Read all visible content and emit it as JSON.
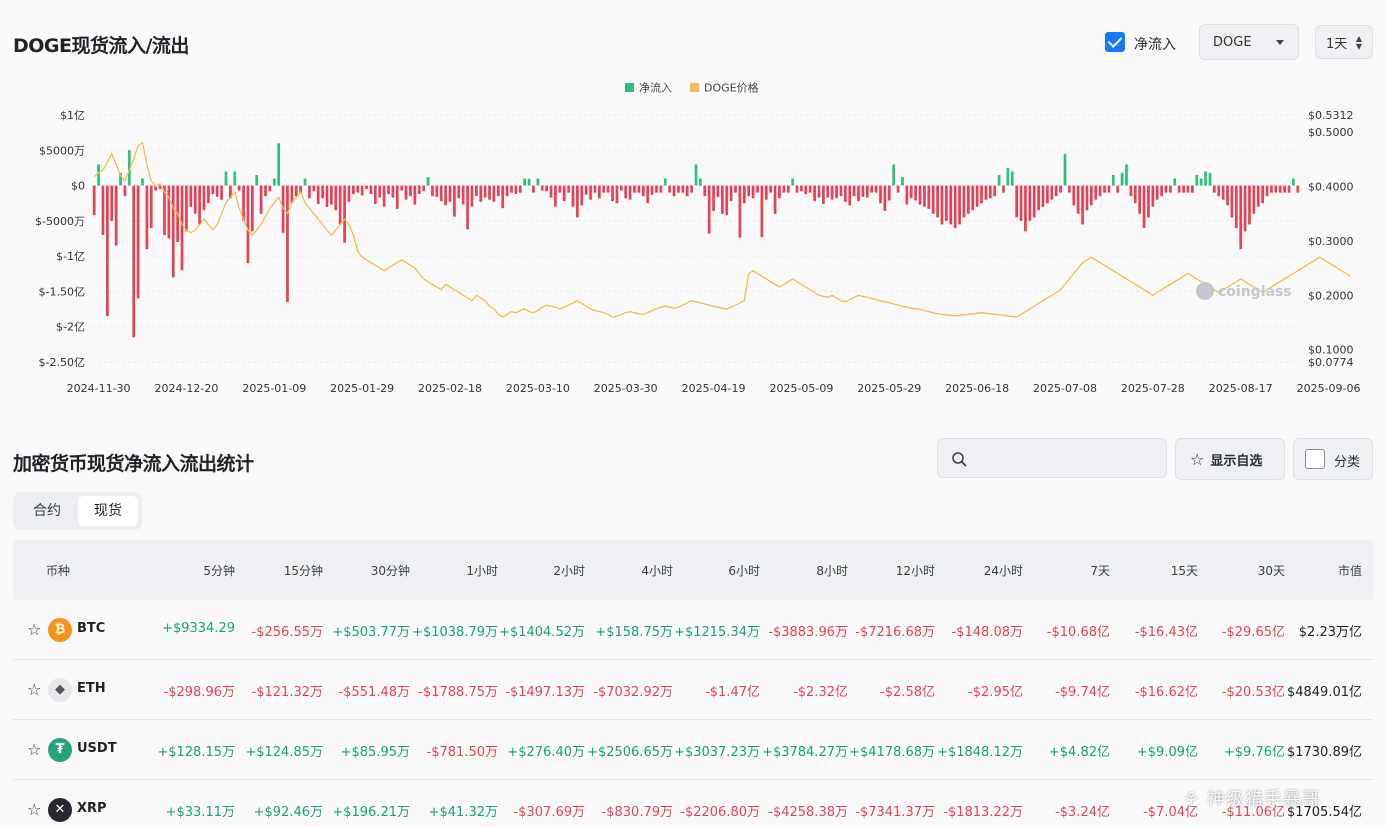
{
  "header": {
    "title": "DOGE现货流入/流出",
    "net_flow_label": "净流入",
    "coin_select": "DOGE",
    "interval_select": "1天"
  },
  "chart_data": {
    "type": "bar",
    "legend": [
      "净流入",
      "DOGE价格"
    ],
    "legend_position": "top-center",
    "colors": {
      "inflow": "#2fbf7f",
      "outflow": "#e84155",
      "price": "#f0c050"
    },
    "x_tick_labels": [
      "2024-11-30",
      "2024-12-20",
      "2025-01-09",
      "2025-01-29",
      "2025-02-18",
      "2025-03-10",
      "2025-03-30",
      "2025-04-19",
      "2025-05-09",
      "2025-05-29",
      "2025-06-18",
      "2025-07-08",
      "2025-07-28",
      "2025-08-17",
      "2025-09-06"
    ],
    "y_left_ticks": [
      "$1亿",
      "$5000万",
      "$0",
      "$-5000万",
      "$-1亿",
      "$-1.50亿",
      "$-2亿",
      "$-2.50亿"
    ],
    "y_right_ticks": [
      "$0.5312",
      "$0.5000",
      "$0.4000",
      "$0.3000",
      "$0.2000",
      "$0.1000",
      "$0.0774"
    ],
    "ylim_left": [
      -25000,
      10000
    ],
    "ylim_right": [
      0.0774,
      0.5312
    ],
    "x_start": "2024-11-29",
    "series": [
      {
        "name": "净流入",
        "axis": "left",
        "values": [
          -4200,
          3000,
          -7000,
          -18500,
          -5000,
          -8500,
          1800,
          -1500,
          5000,
          -21500,
          -16000,
          1000,
          -9000,
          -6000,
          -700,
          -500,
          -7000,
          -7500,
          -13000,
          -8000,
          -12000,
          -6500,
          -3000,
          -4000,
          -5500,
          -3500,
          -2500,
          -1200,
          -1600,
          -2000,
          2000,
          -1800,
          2000,
          -700,
          -5000,
          -11000,
          -6500,
          1500,
          -4000,
          -1500,
          -800,
          1000,
          6000,
          -6700,
          -16500,
          -2500,
          -1500,
          -1000,
          1000,
          -1800,
          -800,
          -2600,
          -1800,
          -3000,
          -2700,
          -3500,
          -5500,
          -8100,
          -2300,
          -1200,
          -1000,
          -1400,
          -500,
          -1200,
          -2600,
          -1700,
          -3000,
          -1200,
          -1700,
          -3300,
          -700,
          -2000,
          -1500,
          -2700,
          -1200,
          -800,
          1200,
          -1500,
          -1600,
          -2200,
          -2800,
          -2300,
          -4400,
          -1800,
          -2700,
          -6200,
          -3000,
          -1500,
          -2300,
          -1700,
          -2000,
          -2300,
          -1500,
          -3200,
          -1500,
          -1000,
          -1200,
          -1000,
          1000,
          1000,
          -1000,
          1000,
          -700,
          -800,
          -1700,
          -3000,
          -1000,
          -2200,
          -1000,
          -3000,
          -4500,
          -2800,
          -1300,
          -2000,
          -1000,
          -1800,
          -1000,
          -1000,
          -2200,
          -2500,
          -700,
          -1800,
          -2000,
          -1000,
          -1000,
          -1500,
          -2500,
          -1300,
          -1000,
          -1000,
          1000,
          -1000,
          -1500,
          -1000,
          -1000,
          -1500,
          -1000,
          3000,
          1000,
          -1500,
          -6800,
          -3600,
          -1600,
          -4000,
          -4200,
          -2200,
          -1000,
          -7400,
          -2500,
          -1500,
          -1800,
          -1000,
          -7300,
          -2000,
          -1000,
          -4000,
          -1800,
          -1000,
          -1000,
          1000,
          -1000,
          -800,
          -1200,
          -1000,
          -2200,
          -1700,
          -2600,
          -1700,
          -2000,
          -1800,
          -1500,
          -2300,
          -2800,
          -1500,
          -2200,
          -1600,
          -1700,
          -1000,
          -1000,
          -2500,
          -3600,
          -2100,
          3000,
          -1000,
          1200,
          -2700,
          -1800,
          -2100,
          -2700,
          -3000,
          -3300,
          -4000,
          -4500,
          -5500,
          -5000,
          -5500,
          -6000,
          -5500,
          -4500,
          -4000,
          -3500,
          -3000,
          -2500,
          -2000,
          -1800,
          -1500,
          1500,
          -1000,
          2500,
          2000,
          -4500,
          -5000,
          -6500,
          -5000,
          -4500,
          -3500,
          -3000,
          -2500,
          -2000,
          -1500,
          -1000,
          4500,
          -1000,
          -2800,
          -4000,
          -5500,
          -3500,
          -2800,
          -2000,
          -1500,
          -1000,
          -1000,
          1500,
          -1000,
          1800,
          3000,
          -1500,
          -2500,
          -4000,
          -6000,
          -4500,
          -3000,
          -2000,
          -1500,
          -1000,
          -1000,
          1000,
          -1000,
          -1000,
          -1000,
          -1000,
          1500,
          1000,
          2000,
          1800,
          -1000,
          -1500,
          -2000,
          -2800,
          -4500,
          -6000,
          -9000,
          -6500,
          -5500,
          -4000,
          -3000,
          -2500,
          -1500,
          -1000,
          -1000,
          -1000,
          -1000,
          -1000,
          1000,
          -1000
        ]
      },
      {
        "name": "DOGE价格",
        "axis": "right",
        "values": [
          0.418,
          0.425,
          0.43,
          0.445,
          0.46,
          0.44,
          0.42,
          0.41,
          0.43,
          0.45,
          0.475,
          0.48,
          0.44,
          0.41,
          0.4,
          0.405,
          0.39,
          0.38,
          0.36,
          0.35,
          0.33,
          0.32,
          0.315,
          0.32,
          0.33,
          0.34,
          0.33,
          0.32,
          0.33,
          0.35,
          0.37,
          0.38,
          0.39,
          0.36,
          0.34,
          0.32,
          0.31,
          0.32,
          0.33,
          0.345,
          0.36,
          0.37,
          0.38,
          0.36,
          0.35,
          0.37,
          0.38,
          0.39,
          0.37,
          0.36,
          0.35,
          0.34,
          0.33,
          0.32,
          0.31,
          0.32,
          0.33,
          0.34,
          0.33,
          0.31,
          0.28,
          0.27,
          0.265,
          0.26,
          0.255,
          0.25,
          0.245,
          0.25,
          0.255,
          0.26,
          0.265,
          0.26,
          0.255,
          0.25,
          0.24,
          0.23,
          0.225,
          0.22,
          0.215,
          0.21,
          0.22,
          0.215,
          0.21,
          0.205,
          0.2,
          0.195,
          0.19,
          0.2,
          0.195,
          0.19,
          0.18,
          0.175,
          0.165,
          0.16,
          0.165,
          0.17,
          0.168,
          0.172,
          0.175,
          0.17,
          0.168,
          0.172,
          0.178,
          0.182,
          0.18,
          0.178,
          0.175,
          0.178,
          0.182,
          0.186,
          0.19,
          0.185,
          0.18,
          0.175,
          0.172,
          0.17,
          0.168,
          0.165,
          0.16,
          0.162,
          0.165,
          0.168,
          0.17,
          0.168,
          0.166,
          0.165,
          0.168,
          0.172,
          0.175,
          0.178,
          0.18,
          0.178,
          0.176,
          0.178,
          0.182,
          0.186,
          0.19,
          0.188,
          0.186,
          0.184,
          0.182,
          0.18,
          0.178,
          0.176,
          0.175,
          0.178,
          0.182,
          0.186,
          0.19,
          0.24,
          0.245,
          0.24,
          0.235,
          0.23,
          0.225,
          0.22,
          0.215,
          0.22,
          0.225,
          0.23,
          0.225,
          0.22,
          0.215,
          0.21,
          0.205,
          0.2,
          0.198,
          0.196,
          0.2,
          0.195,
          0.19,
          0.188,
          0.192,
          0.196,
          0.2,
          0.198,
          0.196,
          0.194,
          0.192,
          0.19,
          0.188,
          0.186,
          0.184,
          0.182,
          0.18,
          0.178,
          0.176,
          0.175,
          0.174,
          0.172,
          0.17,
          0.168,
          0.166,
          0.165,
          0.164,
          0.163,
          0.162,
          0.163,
          0.164,
          0.165,
          0.166,
          0.167,
          0.168,
          0.167,
          0.166,
          0.165,
          0.164,
          0.163,
          0.162,
          0.161,
          0.16,
          0.165,
          0.17,
          0.175,
          0.18,
          0.185,
          0.19,
          0.195,
          0.2,
          0.205,
          0.21,
          0.22,
          0.23,
          0.24,
          0.25,
          0.26,
          0.265,
          0.27,
          0.265,
          0.26,
          0.255,
          0.25,
          0.245,
          0.24,
          0.235,
          0.23,
          0.225,
          0.22,
          0.215,
          0.21,
          0.205,
          0.2,
          0.205,
          0.21,
          0.215,
          0.22,
          0.225,
          0.23,
          0.235,
          0.24,
          0.235,
          0.23,
          0.225,
          0.22,
          0.215,
          0.21,
          0.205,
          0.21,
          0.215,
          0.22,
          0.225,
          0.23,
          0.225,
          0.22,
          0.215,
          0.21,
          0.205,
          0.21,
          0.215,
          0.22,
          0.225,
          0.23,
          0.235,
          0.24,
          0.245,
          0.25,
          0.255,
          0.26,
          0.265,
          0.27,
          0.265,
          0.26,
          0.255,
          0.25,
          0.245,
          0.24,
          0.235
        ]
      }
    ]
  },
  "watermark": "coinglass",
  "stats": {
    "title": "加密货币现货净流入流出统计",
    "search_placeholder": "",
    "show_watchlist": "显示自选",
    "category": "分类",
    "tabs": [
      "合约",
      "现货"
    ],
    "columns": [
      "币种",
      "5分钟",
      "15分钟",
      "30分钟",
      "1小时",
      "2小时",
      "4小时",
      "6小时",
      "8小时",
      "12小时",
      "24小时",
      "7天",
      "15天",
      "30天",
      "市值"
    ],
    "rows": [
      {
        "symbol": "BTC",
        "icon": "btc-icon",
        "color": "#f7931a",
        "values": [
          "+$9334.29",
          "-$256.55万",
          "+$503.77万",
          "+$1038.79万",
          "+$1404.52万",
          "+$158.75万",
          "+$1215.34万",
          "-$3883.96万",
          "-$7216.68万",
          "-$148.08万",
          "-$10.68亿",
          "-$16.43亿",
          "-$29.65亿"
        ],
        "market_cap": "$2.23万亿"
      },
      {
        "symbol": "ETH",
        "icon": "eth-icon",
        "color": "#e6e8ec",
        "values": [
          "-$298.96万",
          "-$121.32万",
          "-$551.48万",
          "-$1788.75万",
          "-$1497.13万",
          "-$7032.92万",
          "-$1.47亿",
          "-$2.32亿",
          "-$2.58亿",
          "-$2.95亿",
          "-$9.74亿",
          "-$16.62亿",
          "-$20.53亿"
        ],
        "market_cap": "$4849.01亿"
      },
      {
        "symbol": "USDT",
        "icon": "usdt-icon",
        "color": "#26a17b",
        "values": [
          "+$128.15万",
          "+$124.85万",
          "+$85.95万",
          "-$781.50万",
          "+$276.40万",
          "+$2506.65万",
          "+$3037.23万",
          "+$3784.27万",
          "+$4178.68万",
          "+$1848.12万",
          "+$4.82亿",
          "+$9.09亿",
          "+$9.76亿"
        ],
        "market_cap": "$1730.89亿"
      },
      {
        "symbol": "XRP",
        "icon": "xrp-icon",
        "color": "#23292f",
        "values": [
          "+$33.11万",
          "+$92.46万",
          "+$196.21万",
          "+$41.32万",
          "-$307.69万",
          "-$830.79万",
          "-$2206.80万",
          "-$4258.38万",
          "-$7341.37万",
          "-$1813.22万",
          "-$3.24亿",
          "-$7.04亿",
          "-$11.06亿"
        ],
        "market_cap": "$1705.54亿"
      }
    ]
  },
  "footer_watermark": "神级猎手暴哥"
}
